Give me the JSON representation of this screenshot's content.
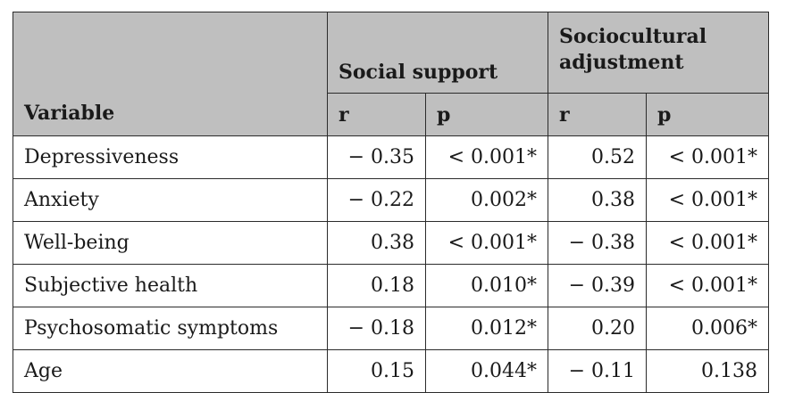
{
  "table": {
    "header": {
      "variable": "Variable",
      "groups": [
        {
          "label": "Social support"
        },
        {
          "label": "Sociocultural adjustment"
        }
      ],
      "subheaders": [
        "r",
        "p",
        "r",
        "p"
      ]
    },
    "rows": [
      {
        "variable": "Depressiveness",
        "cells": [
          "− 0.35",
          "< 0.001*",
          "0.52",
          "< 0.001*"
        ]
      },
      {
        "variable": "Anxiety",
        "cells": [
          "− 0.22",
          "0.002*",
          "0.38",
          "< 0.001*"
        ]
      },
      {
        "variable": "Well-being",
        "cells": [
          "0.38",
          "< 0.001*",
          "− 0.38",
          "< 0.001*"
        ]
      },
      {
        "variable": "Subjective health",
        "cells": [
          "0.18",
          "0.010*",
          "− 0.39",
          "< 0.001*"
        ]
      },
      {
        "variable": "Psychosomatic symptoms",
        "cells": [
          "− 0.18",
          "0.012*",
          "0.20",
          "0.006*"
        ]
      },
      {
        "variable": "Age",
        "cells": [
          "0.15",
          "0.044*",
          "− 0.11",
          "0.138"
        ]
      }
    ]
  }
}
